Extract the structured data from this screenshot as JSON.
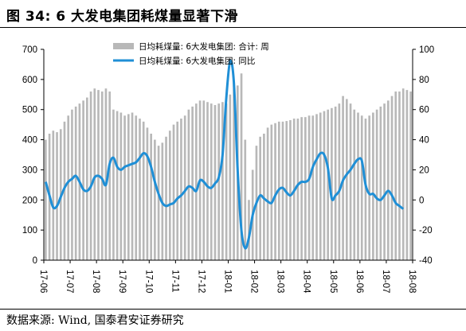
{
  "header": {
    "title": "图 34:  6 大发电集团耗煤量显著下滑"
  },
  "footer": {
    "source": "数据来源:  Wind, 国泰君安证券研究"
  },
  "chart_data": {
    "type": "bar+line",
    "title": "",
    "x_tick_labels": [
      "17-06",
      "17-07",
      "17-08",
      "17-09",
      "17-10",
      "17-11",
      "17-12",
      "18-01",
      "18-02",
      "18-03",
      "18-04",
      "18-05",
      "18-06",
      "18-07",
      "18-08"
    ],
    "y_left": {
      "lim": [
        0,
        700
      ],
      "ticks": [
        0,
        100,
        200,
        300,
        400,
        500,
        600,
        700
      ]
    },
    "y_right": {
      "lim": [
        -40,
        100
      ],
      "ticks": [
        -40,
        -20,
        0,
        20,
        40,
        60,
        80,
        100
      ]
    },
    "legend": {
      "placement": "top-center"
    },
    "colors": {
      "bar": "#b8b8b8",
      "line": "#1f8fd6"
    },
    "series": [
      {
        "name": "日均耗煤量: 6大发电集团: 合计: 周",
        "axis": "left",
        "kind": "bar",
        "values": [
          400,
          420,
          430,
          425,
          435,
          460,
          480,
          500,
          510,
          520,
          530,
          540,
          560,
          570,
          565,
          560,
          570,
          560,
          500,
          495,
          490,
          480,
          485,
          490,
          480,
          470,
          460,
          440,
          420,
          400,
          380,
          390,
          410,
          430,
          450,
          460,
          470,
          480,
          500,
          510,
          520,
          530,
          530,
          525,
          520,
          515,
          520,
          525,
          520,
          550,
          590,
          580,
          620,
          400,
          200,
          300,
          380,
          410,
          420,
          440,
          450,
          455,
          460,
          460,
          462,
          465,
          470,
          470,
          475,
          475,
          480,
          480,
          485,
          490,
          495,
          500,
          505,
          510,
          520,
          545,
          535,
          520,
          500,
          490,
          480,
          470,
          480,
          490,
          500,
          510,
          520,
          530,
          545,
          560,
          560,
          570,
          565,
          560
        ]
      },
      {
        "name": "日均耗煤量: 6大发电集团: 同比",
        "axis": "right",
        "kind": "line",
        "values": [
          12,
          3,
          -5,
          -4,
          2,
          8,
          12,
          14,
          16,
          12,
          7,
          6,
          9,
          15,
          16,
          14,
          10,
          24,
          28,
          22,
          20,
          22,
          23,
          24,
          25,
          28,
          31,
          29,
          22,
          12,
          4,
          -2,
          -4,
          -3,
          -2,
          1,
          3,
          6,
          9,
          8,
          6,
          13,
          12,
          9,
          8,
          11,
          15,
          30,
          68,
          92,
          78,
          20,
          -20,
          -32,
          -25,
          -10,
          -2,
          3,
          1,
          -1,
          -2,
          3,
          7,
          8,
          5,
          3,
          6,
          10,
          12,
          12,
          14,
          22,
          27,
          31,
          30,
          21,
          1,
          3,
          6,
          13,
          17,
          20,
          24,
          27,
          26,
          10,
          4,
          4,
          1,
          0,
          3,
          6,
          3,
          -2,
          -4,
          -6
        ]
      }
    ]
  }
}
